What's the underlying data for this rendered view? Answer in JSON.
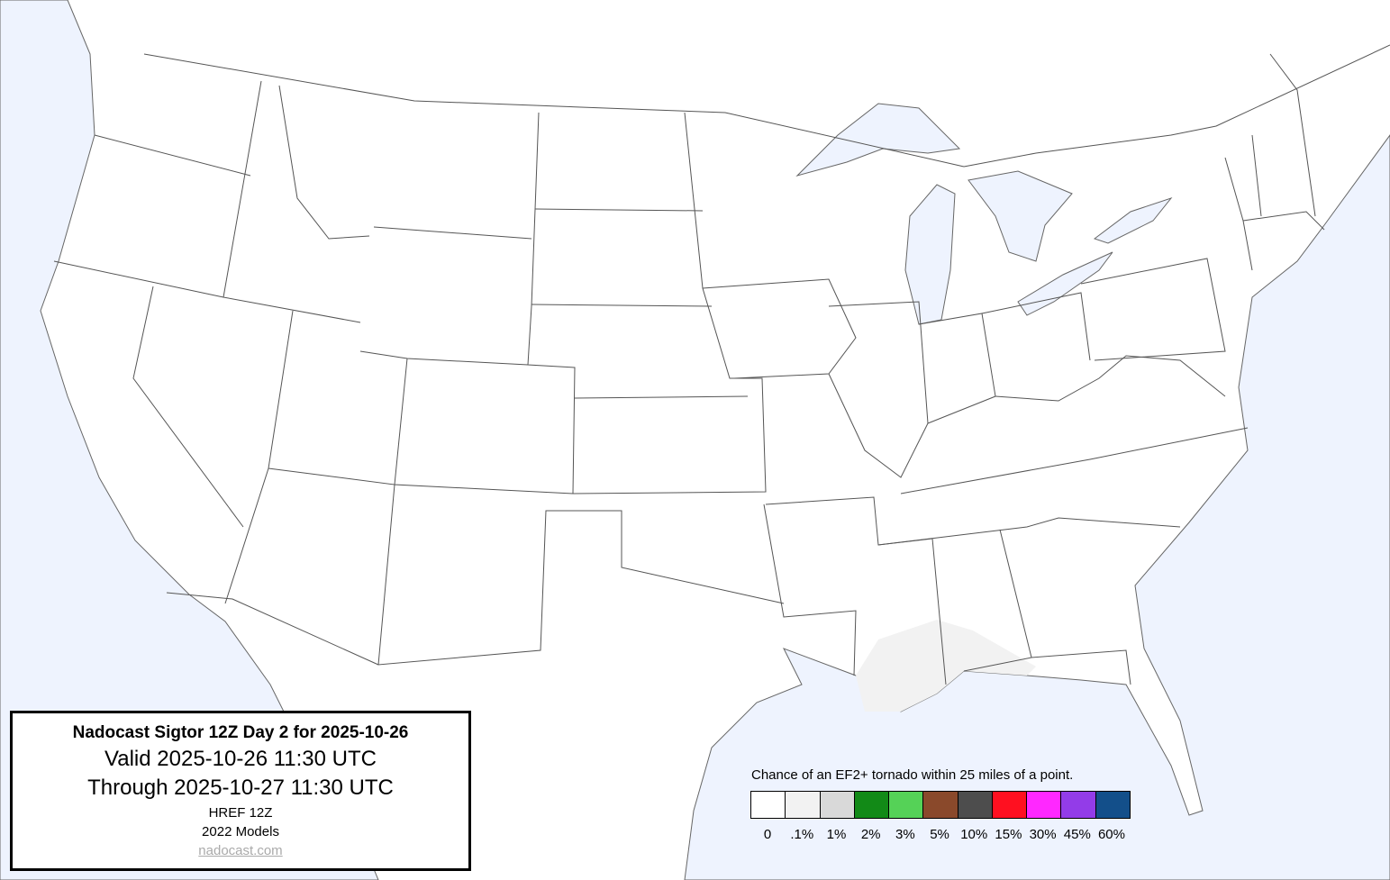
{
  "colors": {
    "ocean": "#eef3fe",
    "land": "#ffffff",
    "border": "#555555",
    "forecast_area": "#f2f2f2"
  },
  "info_box": {
    "title": "Nadocast Sigtor 12Z Day 2 for 2025-10-26",
    "valid": "Valid 2025-10-26 11:30 UTC",
    "through": "Through 2025-10-27 11:30 UTC",
    "model": "HREF 12Z",
    "models_year": "2022 Models",
    "link": "nadocast.com"
  },
  "legend": {
    "title": "Chance of an EF2+ tornado within 25 miles of a point.",
    "bins": [
      {
        "label": "0",
        "color": "#ffffff"
      },
      {
        "label": ".1%",
        "color": "#f2f2f2"
      },
      {
        "label": "1%",
        "color": "#d9d9d9"
      },
      {
        "label": "2%",
        "color": "#128a17"
      },
      {
        "label": "3%",
        "color": "#55d257"
      },
      {
        "label": "5%",
        "color": "#8a492b"
      },
      {
        "label": "10%",
        "color": "#4d4d4d"
      },
      {
        "label": "15%",
        "color": "#ff1020"
      },
      {
        "label": "30%",
        "color": "#ff28ff"
      },
      {
        "label": "45%",
        "color": "#933ce8"
      },
      {
        "label": "60%",
        "color": "#134f8a"
      }
    ]
  },
  "forecast_areas": [
    {
      "level": ".1%",
      "region": "Gulf Coast (LA, MS, AL, FL panhandle)"
    }
  ]
}
